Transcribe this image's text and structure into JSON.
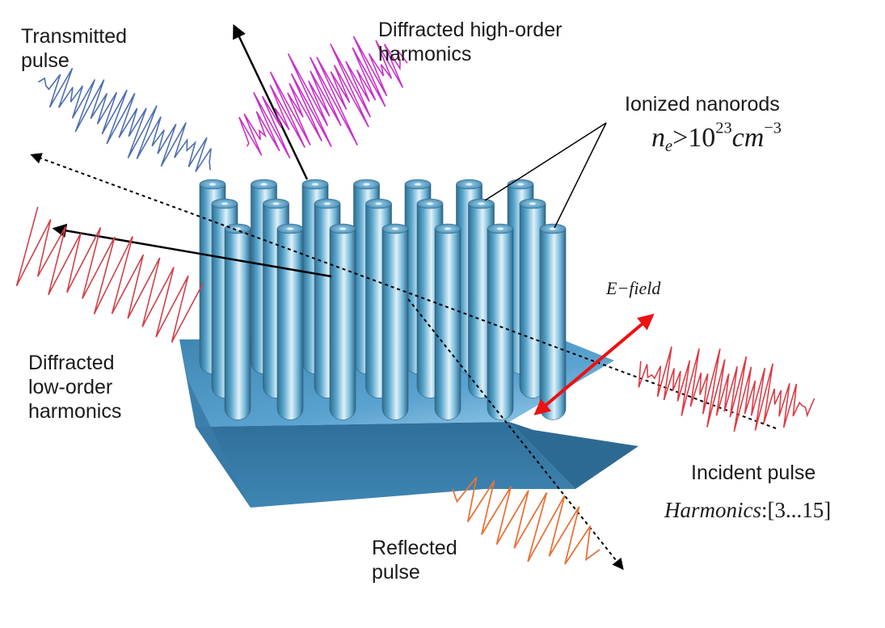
{
  "labels": {
    "transmitted_line1": "Transmitted",
    "transmitted_line2": "pulse",
    "diffracted_high_line1": "Diffracted high-order",
    "diffracted_high_line2": "harmonics",
    "ionized_nanorods": "Ionized nanorods",
    "density_base": "n",
    "density_sub": "e",
    "density_rel": ">10",
    "density_exp": "23",
    "density_unit": "cm",
    "density_unit_exp": "−3",
    "efield": "E−field",
    "diffracted_low_line1": "Diffracted",
    "diffracted_low_line2": "low-order",
    "diffracted_low_line3": "harmonics",
    "incident": "Incident pulse",
    "harmonics_word": "Harmonics",
    "harmonics_range": ":[3...15]",
    "reflected_line1": "Reflected",
    "reflected_line2": "pulse"
  },
  "colors": {
    "transmitted_wave": "#4f6fb0",
    "high_order_wave": "#c832c8",
    "low_order_wave": "#d0404a",
    "incident_wave": "#dc3c46",
    "reflected_wave": "#e8733a",
    "efield_arrow": "#ee1111",
    "rod_dark": "#2e6f93",
    "rod_light": "#d9eef8",
    "substrate_top": "#4f97c4",
    "substrate_side": "#3a7ba7"
  }
}
